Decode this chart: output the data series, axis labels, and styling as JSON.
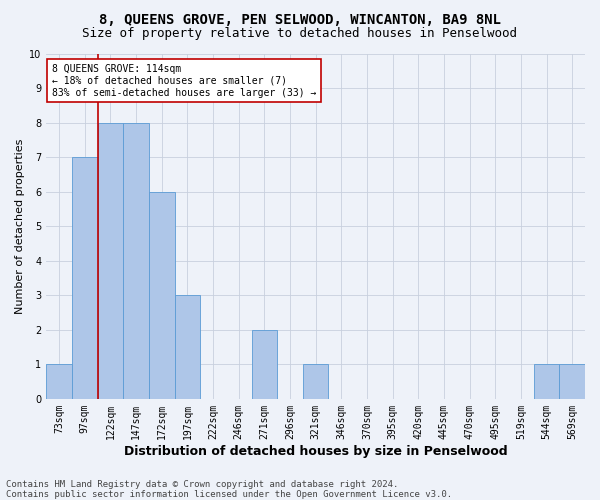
{
  "title": "8, QUEENS GROVE, PEN SELWOOD, WINCANTON, BA9 8NL",
  "subtitle": "Size of property relative to detached houses in Penselwood",
  "xlabel": "Distribution of detached houses by size in Penselwood",
  "ylabel": "Number of detached properties",
  "categories": [
    "73sqm",
    "97sqm",
    "122sqm",
    "147sqm",
    "172sqm",
    "197sqm",
    "222sqm",
    "246sqm",
    "271sqm",
    "296sqm",
    "321sqm",
    "346sqm",
    "370sqm",
    "395sqm",
    "420sqm",
    "445sqm",
    "470sqm",
    "495sqm",
    "519sqm",
    "544sqm",
    "569sqm"
  ],
  "values": [
    1,
    7,
    8,
    8,
    6,
    3,
    0,
    0,
    2,
    0,
    1,
    0,
    0,
    0,
    0,
    0,
    0,
    0,
    0,
    1,
    1
  ],
  "bar_color": "#aec6e8",
  "bar_edge_color": "#5b9bd5",
  "vline_x": 1.5,
  "vline_color": "#c00000",
  "annotation_text": "8 QUEENS GROVE: 114sqm\n← 18% of detached houses are smaller (7)\n83% of semi-detached houses are larger (33) →",
  "annotation_box_color": "#ffffff",
  "annotation_box_edge": "#c00000",
  "ylim": [
    0,
    10
  ],
  "yticks": [
    0,
    1,
    2,
    3,
    4,
    5,
    6,
    7,
    8,
    9,
    10
  ],
  "footnote1": "Contains HM Land Registry data © Crown copyright and database right 2024.",
  "footnote2": "Contains public sector information licensed under the Open Government Licence v3.0.",
  "title_fontsize": 10,
  "subtitle_fontsize": 9,
  "xlabel_fontsize": 9,
  "ylabel_fontsize": 8,
  "tick_fontsize": 7,
  "annot_fontsize": 7,
  "footnote_fontsize": 6.5,
  "background_color": "#eef2f9"
}
